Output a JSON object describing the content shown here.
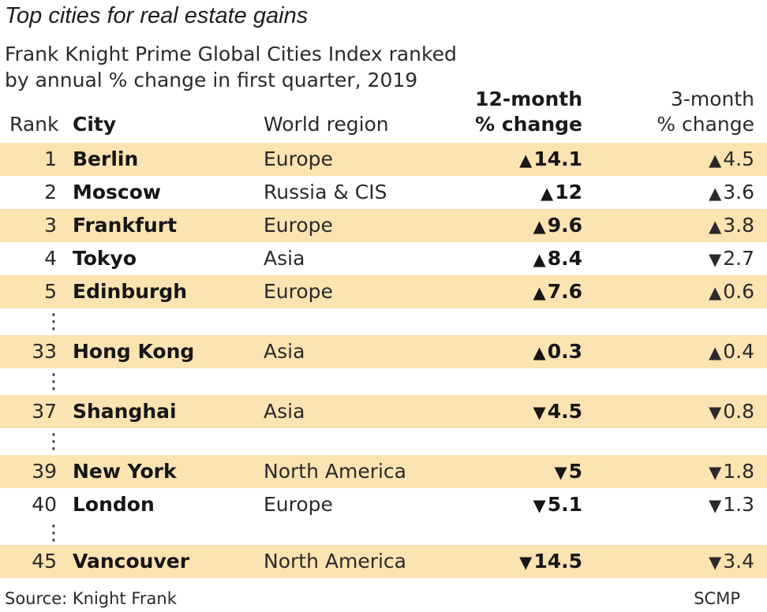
{
  "title": "Top cities for real estate gains",
  "subtitle": "Frank Knight Prime Global Cities Index ranked by annual % change in first quarter, 2019",
  "headers": {
    "rank": "Rank",
    "city": "City",
    "region": "World region",
    "m12_line1": "12-month",
    "m12_line2": "% change",
    "m3_line1": "3-month",
    "m3_line2": "% change"
  },
  "arrows": {
    "up": "▲",
    "down": "▼"
  },
  "footer": {
    "source": "Source: Knight Frank",
    "credit": "SCMP"
  },
  "colors": {
    "row_shade": "#fbe3b2"
  },
  "ellipsis": "⋮",
  "chart_data": {
    "type": "table",
    "columns": [
      "Rank",
      "City",
      "World region",
      "12-month % change",
      "3-month % change"
    ],
    "rows": [
      {
        "rank": "1",
        "city": "Berlin",
        "region": "Europe",
        "m12": "14.1",
        "m12_dir": "up",
        "m3": "4.5",
        "m3_dir": "up",
        "shaded": true,
        "gap_after": false
      },
      {
        "rank": "2",
        "city": "Moscow",
        "region": "Russia & CIS",
        "m12": "12",
        "m12_dir": "up",
        "m3": "3.6",
        "m3_dir": "up",
        "shaded": false,
        "gap_after": false
      },
      {
        "rank": "3",
        "city": "Frankfurt",
        "region": "Europe",
        "m12": "9.6",
        "m12_dir": "up",
        "m3": "3.8",
        "m3_dir": "up",
        "shaded": true,
        "gap_after": false
      },
      {
        "rank": "4",
        "city": "Tokyo",
        "region": "Asia",
        "m12": "8.4",
        "m12_dir": "up",
        "m3": "2.7",
        "m3_dir": "down",
        "shaded": false,
        "gap_after": false
      },
      {
        "rank": "5",
        "city": "Edinburgh",
        "region": "Europe",
        "m12": "7.6",
        "m12_dir": "up",
        "m3": "0.6",
        "m3_dir": "up",
        "shaded": true,
        "gap_after": true
      },
      {
        "rank": "33",
        "city": "Hong Kong",
        "region": "Asia",
        "m12": "0.3",
        "m12_dir": "up",
        "m3": "0.4",
        "m3_dir": "up",
        "shaded": true,
        "gap_after": true
      },
      {
        "rank": "37",
        "city": "Shanghai",
        "region": "Asia",
        "m12": "4.5",
        "m12_dir": "down",
        "m3": "0.8",
        "m3_dir": "down",
        "shaded": true,
        "gap_after": true
      },
      {
        "rank": "39",
        "city": "New York",
        "region": "North America",
        "m12": "5",
        "m12_dir": "down",
        "m3": "1.8",
        "m3_dir": "down",
        "shaded": true,
        "gap_after": false
      },
      {
        "rank": "40",
        "city": "London",
        "region": "Europe",
        "m12": "5.1",
        "m12_dir": "down",
        "m3": "1.3",
        "m3_dir": "down",
        "shaded": false,
        "gap_after": true
      },
      {
        "rank": "45",
        "city": "Vancouver",
        "region": "North America",
        "m12": "14.5",
        "m12_dir": "down",
        "m3": "3.4",
        "m3_dir": "down",
        "shaded": true,
        "gap_after": false
      }
    ]
  }
}
